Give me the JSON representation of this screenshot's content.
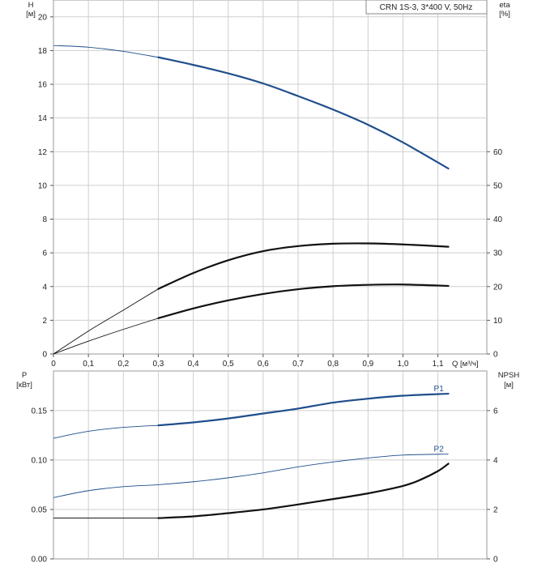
{
  "legend": {
    "text": "CRN 1S-3, 3*400 V, 50Hz"
  },
  "colors": {
    "blue": "#1f4e8c",
    "black": "#111111",
    "grid": "#cfcfcf"
  },
  "chart_data": [
    {
      "type": "line",
      "name": "top-panel",
      "x_label": "Q [м³/ч]",
      "y_left_label": [
        "H",
        "[м]"
      ],
      "y_right_label": [
        "eta",
        "[%]"
      ],
      "x_ticks": [
        "0",
        "0,1",
        "0,2",
        "0,3",
        "0,4",
        "0,5",
        "0,6",
        "0,7",
        "0,8",
        "0,9",
        "1,0",
        "1,1"
      ],
      "x_range": [
        0,
        1.24
      ],
      "y_left_ticks": [
        "0",
        "2",
        "4",
        "6",
        "8",
        "10",
        "12",
        "14",
        "16",
        "18",
        "20"
      ],
      "y_left_range": [
        0,
        21
      ],
      "y_right_ticks": [
        "0",
        "10",
        "20",
        "30",
        "40",
        "50",
        "60"
      ],
      "y_right_range": [
        0,
        105
      ],
      "grid": true,
      "series": [
        {
          "id": "H",
          "axis": "left",
          "color": "#1f4e8c",
          "points": [
            [
              0,
              18.3
            ],
            [
              0.1,
              18.2
            ],
            [
              0.2,
              17.95
            ],
            [
              0.3,
              17.6
            ],
            [
              0.4,
              17.15
            ],
            [
              0.5,
              16.65
            ],
            [
              0.6,
              16.05
            ],
            [
              0.7,
              15.3
            ],
            [
              0.8,
              14.5
            ],
            [
              0.9,
              13.6
            ],
            [
              1.0,
              12.55
            ],
            [
              1.13,
              11.0
            ]
          ],
          "thin_until": 0.3
        },
        {
          "id": "eta-upper",
          "axis": "right",
          "color": "#111111",
          "points": [
            [
              0,
              0
            ],
            [
              0.1,
              6.8
            ],
            [
              0.2,
              13.0
            ],
            [
              0.3,
              19.3
            ],
            [
              0.4,
              24.0
            ],
            [
              0.5,
              27.8
            ],
            [
              0.6,
              30.5
            ],
            [
              0.7,
              32.0
            ],
            [
              0.8,
              32.7
            ],
            [
              0.9,
              32.8
            ],
            [
              1.0,
              32.5
            ],
            [
              1.13,
              31.8
            ]
          ],
          "thin_until": 0.3
        },
        {
          "id": "eta-lower",
          "axis": "right",
          "color": "#111111",
          "points": [
            [
              0,
              0
            ],
            [
              0.1,
              3.8
            ],
            [
              0.2,
              7.3
            ],
            [
              0.3,
              10.6
            ],
            [
              0.4,
              13.5
            ],
            [
              0.5,
              15.9
            ],
            [
              0.6,
              17.8
            ],
            [
              0.7,
              19.2
            ],
            [
              0.8,
              20.1
            ],
            [
              0.9,
              20.5
            ],
            [
              1.0,
              20.6
            ],
            [
              1.13,
              20.2
            ]
          ],
          "thin_until": 0.3
        }
      ]
    },
    {
      "type": "line",
      "name": "bottom-panel",
      "y_left_label": [
        "P",
        "[кВт]"
      ],
      "y_right_label": [
        "NPSH",
        "[м]"
      ],
      "x_range": [
        0,
        1.24
      ],
      "y_left_ticks": [
        "0.00",
        "0.05",
        "0.10",
        "0.15"
      ],
      "y_left_range": [
        0,
        0.19
      ],
      "y_right_ticks": [
        "0",
        "2",
        "4",
        "6"
      ],
      "y_right_range": [
        0,
        7.6
      ],
      "grid": true,
      "series": [
        {
          "id": "P1",
          "label": "P1",
          "axis": "left",
          "color": "#1f4e8c",
          "points": [
            [
              0,
              0.122
            ],
            [
              0.1,
              0.129
            ],
            [
              0.2,
              0.133
            ],
            [
              0.3,
              0.135
            ],
            [
              0.4,
              0.138
            ],
            [
              0.5,
              0.142
            ],
            [
              0.6,
              0.147
            ],
            [
              0.7,
              0.152
            ],
            [
              0.8,
              0.158
            ],
            [
              0.9,
              0.162
            ],
            [
              1.0,
              0.165
            ],
            [
              1.13,
              0.167
            ]
          ],
          "thin_until": 0.3
        },
        {
          "id": "P2",
          "label": "P2",
          "axis": "left",
          "color": "#1f4e8c",
          "points": [
            [
              0,
              0.062
            ],
            [
              0.1,
              0.069
            ],
            [
              0.2,
              0.073
            ],
            [
              0.3,
              0.075
            ],
            [
              0.4,
              0.078
            ],
            [
              0.5,
              0.082
            ],
            [
              0.6,
              0.087
            ],
            [
              0.7,
              0.093
            ],
            [
              0.8,
              0.098
            ],
            [
              0.9,
              0.102
            ],
            [
              1.0,
              0.105
            ],
            [
              1.13,
              0.106
            ]
          ],
          "thin_until": 1.13
        },
        {
          "id": "NPSH",
          "axis": "right",
          "color": "#111111",
          "points": [
            [
              0,
              1.65
            ],
            [
              0.1,
              1.65
            ],
            [
              0.2,
              1.65
            ],
            [
              0.3,
              1.65
            ],
            [
              0.4,
              1.72
            ],
            [
              0.5,
              1.85
            ],
            [
              0.6,
              2.0
            ],
            [
              0.7,
              2.2
            ],
            [
              0.8,
              2.42
            ],
            [
              0.9,
              2.65
            ],
            [
              1.0,
              2.95
            ],
            [
              1.05,
              3.2
            ],
            [
              1.1,
              3.55
            ],
            [
              1.13,
              3.85
            ]
          ],
          "thin_until": 0.3
        }
      ]
    }
  ]
}
